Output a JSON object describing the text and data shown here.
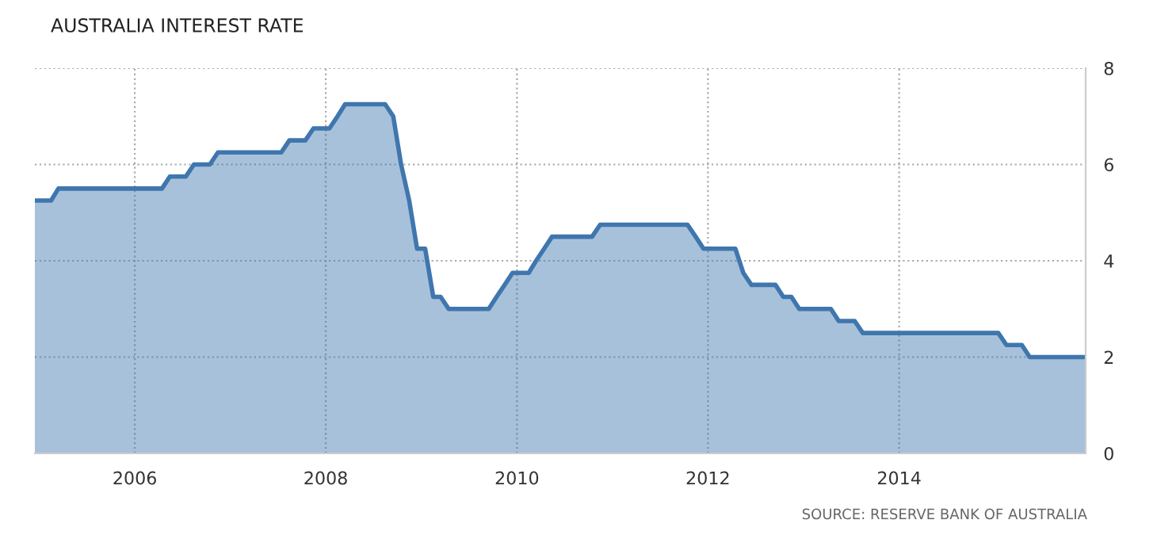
{
  "chart_data": {
    "type": "area",
    "title": "AUSTRALIA INTEREST RATE",
    "annotations": [
      "SOURCE: RESERVE BANK OF AUSTRALIA"
    ],
    "x": [
      "2004-12",
      "2005-02",
      "2005-03",
      "2006-04",
      "2006-05",
      "2006-07",
      "2006-08",
      "2006-10",
      "2006-11",
      "2007-07",
      "2007-08",
      "2007-10",
      "2007-11",
      "2008-01",
      "2008-02",
      "2008-03",
      "2008-08",
      "2008-09",
      "2008-10",
      "2008-11",
      "2008-12",
      "2009-01",
      "2009-02",
      "2009-03",
      "2009-04",
      "2009-09",
      "2009-10",
      "2009-11",
      "2009-12",
      "2010-02",
      "2010-03",
      "2010-04",
      "2010-05",
      "2010-10",
      "2010-11",
      "2011-10",
      "2011-11",
      "2011-12",
      "2012-04",
      "2012-05",
      "2012-06",
      "2012-09",
      "2012-10",
      "2012-11",
      "2012-12",
      "2013-04",
      "2013-05",
      "2013-07",
      "2013-08",
      "2015-01",
      "2015-02",
      "2015-04",
      "2015-05",
      "2015-12"
    ],
    "series": [
      {
        "color": "#3f76ae",
        "values": [
          5.25,
          5.25,
          5.5,
          5.5,
          5.75,
          5.75,
          6.0,
          6.0,
          6.25,
          6.25,
          6.5,
          6.5,
          6.75,
          6.75,
          7.0,
          7.25,
          7.25,
          7.0,
          6.0,
          5.25,
          4.25,
          4.25,
          3.25,
          3.25,
          3.0,
          3.0,
          3.25,
          3.5,
          3.75,
          3.75,
          4.0,
          4.25,
          4.5,
          4.5,
          4.75,
          4.75,
          4.5,
          4.25,
          4.25,
          3.75,
          3.5,
          3.5,
          3.25,
          3.25,
          3.0,
          3.0,
          2.75,
          2.75,
          2.5,
          2.5,
          2.25,
          2.25,
          2.0,
          2.0
        ]
      }
    ],
    "xlim": [
      "2004-12",
      "2015-12"
    ],
    "xticks": [
      "2006",
      "2008",
      "2010",
      "2012",
      "2014"
    ],
    "ylim": [
      0,
      8
    ],
    "yticks": [
      0,
      2,
      4,
      6,
      8
    ],
    "grid": true,
    "line_style": "solid",
    "marker": "none"
  }
}
